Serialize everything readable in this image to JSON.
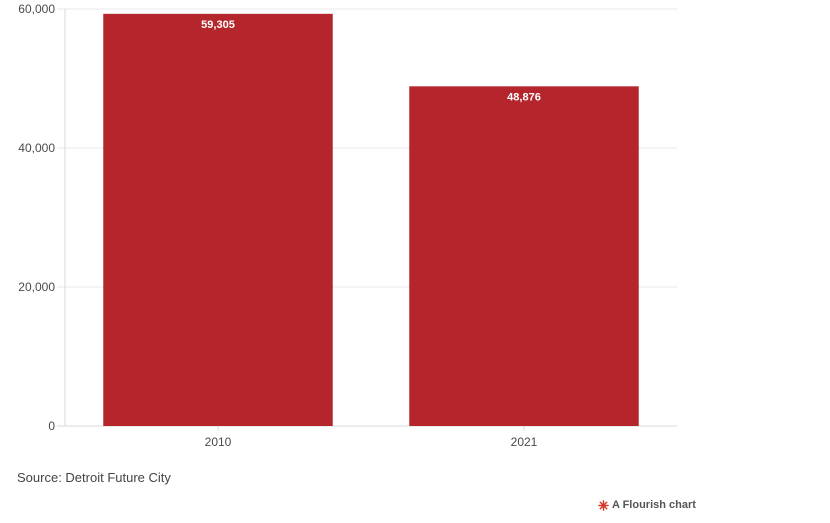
{
  "chart_data": {
    "type": "bar",
    "categories": [
      "2010",
      "2021"
    ],
    "values": [
      59305,
      48876
    ],
    "value_labels": [
      "59,305",
      "48,876"
    ],
    "ylim": [
      0,
      60000
    ],
    "yticks": [
      0,
      20000,
      40000,
      60000
    ],
    "ytick_labels": [
      "0",
      "20,000",
      "40,000",
      "60,000"
    ],
    "grid": true,
    "bar_color": "#b5262c",
    "grid_color": "#e8e8e8",
    "axis_color": "#d8d8d8"
  },
  "footer": {
    "source": "Source: Detroit Future City",
    "credit": "A Flourish chart",
    "credit_icon": "flourish-logo-icon",
    "credit_icon_color": "#d33a2c"
  }
}
